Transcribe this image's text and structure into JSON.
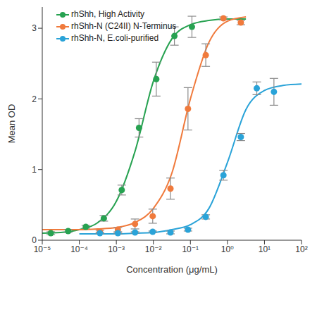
{
  "chart_data": {
    "type": "scatter",
    "x_label": "Concentration (μg/mL)",
    "y_label": "Mean OD",
    "log": "x",
    "grid": false,
    "legend": "upper left",
    "xlim": [
      1e-05,
      100
    ],
    "xticks": [
      {
        "value": 1e-05,
        "label": "10⁻⁵"
      },
      {
        "value": 0.0001,
        "label": "10⁻⁴"
      },
      {
        "value": 0.001,
        "label": "10⁻³"
      },
      {
        "value": 0.01,
        "label": "10⁻²"
      },
      {
        "value": 0.1,
        "label": "10⁻¹"
      },
      {
        "value": 1,
        "label": "10⁰"
      },
      {
        "value": 10,
        "label": "10¹"
      },
      {
        "value": 100,
        "label": "10²"
      }
    ],
    "ylim": [
      0,
      3.3
    ],
    "yticks": [
      0,
      1,
      2,
      3
    ],
    "series": [
      {
        "name": "rhShh, High Activity",
        "color": "#27a251",
        "marker": "circle",
        "x": [
          1.7e-05,
          5e-05,
          0.00015,
          0.00046,
          0.0014,
          0.0041,
          0.012,
          0.037,
          0.11
        ],
        "values": [
          0.1,
          0.13,
          0.19,
          0.31,
          0.71,
          1.59,
          2.28,
          2.89,
          3.02
        ],
        "errors": [
          0.02,
          0.02,
          0.02,
          0.04,
          0.07,
          0.13,
          0.24,
          0.13,
          0.15
        ],
        "curve_x": [
          1e-05,
          3.16e-05,
          0.0001,
          0.000316,
          0.001,
          0.00316,
          0.01,
          0.0316,
          0.1,
          0.316,
          1,
          3.16
        ],
        "curve_values": [
          0.1,
          0.11,
          0.15,
          0.25,
          0.55,
          1.25,
          2.25,
          2.85,
          3.05,
          3.11,
          3.13,
          3.13
        ]
      },
      {
        "name": "rhShh-N (C24II) N-Terminus",
        "color": "#f07a3c",
        "marker": "circle",
        "x": [
          0.00036,
          0.0011,
          0.0032,
          0.0096,
          0.029,
          0.086,
          0.26,
          0.78,
          2.3
        ],
        "values": [
          0.12,
          0.15,
          0.23,
          0.34,
          0.73,
          1.86,
          2.62,
          3.14,
          3.08
        ],
        "errors": [
          0.02,
          0.03,
          0.07,
          0.1,
          0.15,
          0.3,
          0.16,
          0.02,
          0.03
        ],
        "curve_x": [
          1e-05,
          3.16e-05,
          0.0001,
          0.000316,
          0.001,
          0.00316,
          0.01,
          0.0316,
          0.1,
          0.316,
          1,
          3.16
        ],
        "curve_values": [
          0.15,
          0.15,
          0.15,
          0.16,
          0.18,
          0.25,
          0.45,
          0.95,
          2.0,
          2.8,
          3.1,
          3.16
        ]
      },
      {
        "name": "rhShh-N, E.coli-purified",
        "color": "#2aa3d8",
        "marker": "circle",
        "x": [
          0.00036,
          0.0011,
          0.0032,
          0.0096,
          0.029,
          0.086,
          0.26,
          0.78,
          2.3,
          6.2,
          18
        ],
        "values": [
          0.1,
          0.1,
          0.11,
          0.12,
          0.11,
          0.15,
          0.33,
          0.92,
          1.46,
          2.15,
          2.1
        ],
        "errors": [
          0.01,
          0.01,
          0.01,
          0.01,
          0.02,
          0.02,
          0.03,
          0.07,
          0.05,
          0.09,
          0.19
        ],
        "curve_x": [
          0.0001,
          0.000316,
          0.001,
          0.00316,
          0.01,
          0.0316,
          0.1,
          0.316,
          1,
          3.16,
          10,
          31.6,
          100
        ],
        "curve_values": [
          0.09,
          0.09,
          0.09,
          0.1,
          0.11,
          0.15,
          0.22,
          0.45,
          1.1,
          1.85,
          2.12,
          2.19,
          2.21
        ]
      }
    ]
  }
}
